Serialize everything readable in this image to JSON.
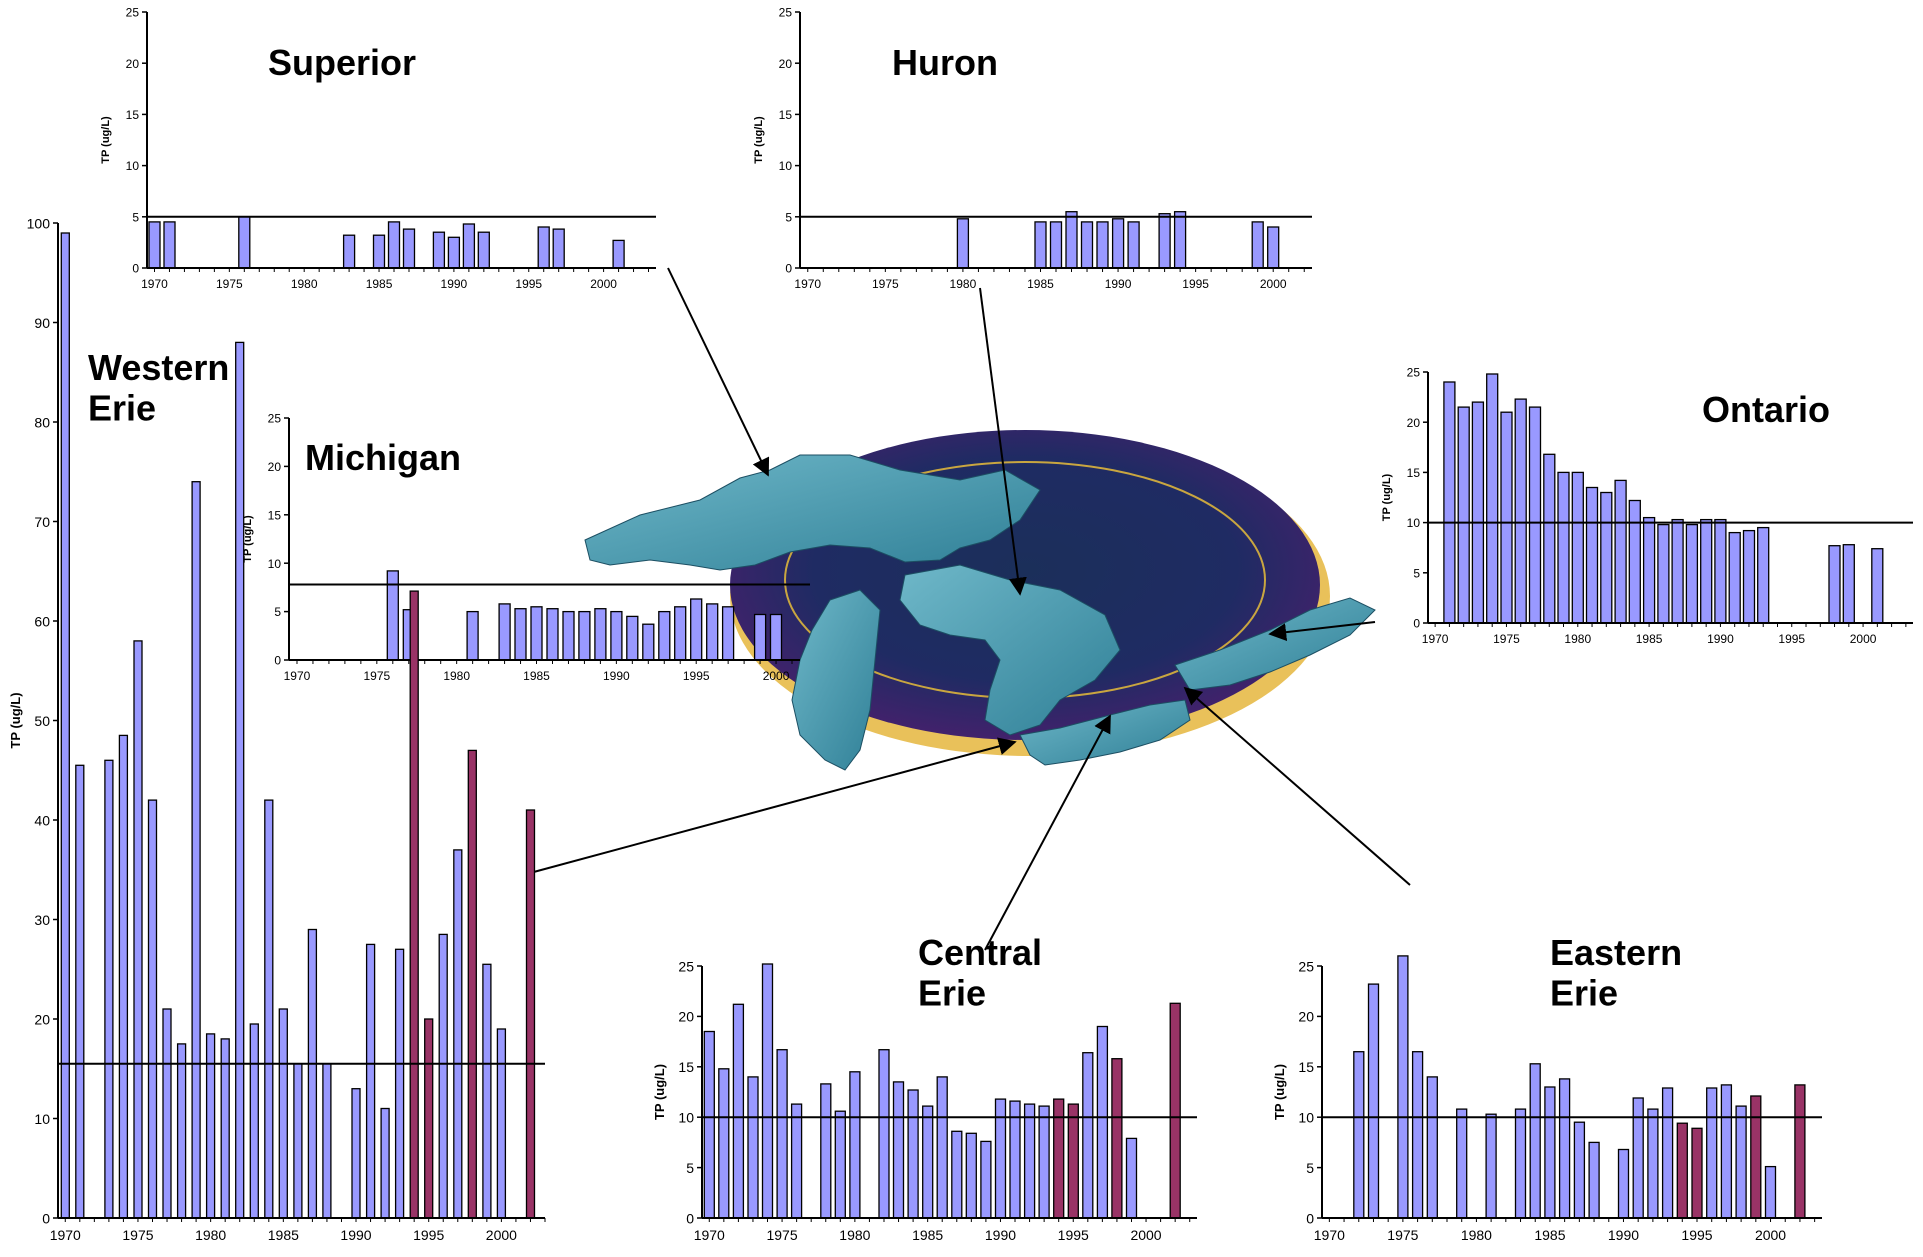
{
  "colors": {
    "bar": "#9999ff",
    "bar_highlight": "#993366",
    "bar_outline": "#000000",
    "axis": "#000000"
  },
  "map": {
    "description_icon": "great-lakes-basin-map"
  },
  "chart_data": [
    {
      "id": "superior",
      "type": "bar",
      "title": "Superior",
      "ylabel": "TP (ug/L)",
      "ylim": [
        0,
        25
      ],
      "yticks": [
        0,
        5,
        10,
        15,
        20,
        25
      ],
      "xticks": [
        1970,
        1975,
        1980,
        1985,
        1990,
        1995,
        2000
      ],
      "xlim": [
        1969.5,
        2003.5
      ],
      "reference_line": 5,
      "x": [
        1970,
        1971,
        1976,
        1983,
        1985,
        1986,
        1987,
        1989,
        1990,
        1991,
        1992,
        1996,
        1997,
        2001
      ],
      "values": [
        4.5,
        4.5,
        5,
        3.2,
        3.2,
        4.5,
        3.8,
        3.5,
        3,
        4.3,
        3.5,
        4,
        3.8,
        2.7
      ],
      "highlight_x": []
    },
    {
      "id": "huron",
      "type": "bar",
      "title": "Huron",
      "ylabel": "TP (ug/L)",
      "ylim": [
        0,
        25
      ],
      "yticks": [
        0,
        5,
        10,
        15,
        20,
        25
      ],
      "xticks": [
        1970,
        1975,
        1980,
        1985,
        1990,
        1995,
        2000
      ],
      "xlim": [
        1969.5,
        2002.5
      ],
      "reference_line": 5,
      "x": [
        1980,
        1985,
        1986,
        1987,
        1988,
        1989,
        1990,
        1991,
        1993,
        1994,
        1999,
        2000
      ],
      "values": [
        4.8,
        4.5,
        4.5,
        5.5,
        4.5,
        4.5,
        4.8,
        4.5,
        5.3,
        5.5,
        4.5,
        4
      ],
      "highlight_x": []
    },
    {
      "id": "michigan",
      "type": "bar",
      "title": "Michigan",
      "ylabel": "TP (ug/L)",
      "ylim": [
        0,
        25
      ],
      "yticks": [
        0,
        5,
        10,
        15,
        20,
        25
      ],
      "xticks": [
        1970,
        1975,
        1980,
        1985,
        1990,
        1995,
        2000
      ],
      "xlim": [
        1969.5,
        2001.5
      ],
      "reference_line": 7.8,
      "x": [
        1976,
        1977,
        1981,
        1983,
        1984,
        1985,
        1986,
        1987,
        1988,
        1989,
        1990,
        1991,
        1992,
        1993,
        1994,
        1995,
        1996,
        1997,
        1999,
        2000
      ],
      "values": [
        9.2,
        5.2,
        5,
        5.8,
        5.3,
        5.5,
        5.3,
        5,
        5,
        5.3,
        5,
        4.5,
        3.7,
        5,
        5.5,
        6.3,
        5.8,
        5.5,
        4.7,
        4.7
      ],
      "highlight_x": []
    },
    {
      "id": "ontario",
      "type": "bar",
      "title": "Ontario",
      "ylabel": "TP (ug/L)",
      "ylim": [
        0,
        25
      ],
      "yticks": [
        0,
        5,
        10,
        15,
        20,
        25
      ],
      "xticks": [
        1970,
        1975,
        1980,
        1985,
        1990,
        1995,
        2000
      ],
      "xlim": [
        1969.5,
        2003.5
      ],
      "reference_line": 10,
      "x": [
        1971,
        1972,
        1973,
        1974,
        1975,
        1976,
        1977,
        1978,
        1979,
        1980,
        1981,
        1982,
        1983,
        1984,
        1985,
        1986,
        1987,
        1988,
        1989,
        1990,
        1991,
        1992,
        1993,
        1998,
        1999,
        2001
      ],
      "values": [
        24,
        21.5,
        22,
        24.8,
        21,
        22.3,
        21.5,
        16.8,
        15,
        15,
        13.5,
        13,
        14.2,
        12.2,
        10.5,
        9.8,
        10.3,
        9.8,
        10.3,
        10.3,
        9,
        9.2,
        9.5,
        7.7,
        7.8,
        7.4
      ],
      "highlight_x": []
    },
    {
      "id": "western-erie",
      "type": "bar",
      "title": "Western\nErie",
      "ylabel": "TP (ug/L)",
      "ylim": [
        0,
        100
      ],
      "yticks": [
        0,
        10,
        20,
        30,
        40,
        50,
        60,
        70,
        80,
        90,
        100
      ],
      "xticks": [
        1970,
        1975,
        1980,
        1985,
        1990,
        1995,
        2000
      ],
      "xlim": [
        1969.5,
        2003
      ],
      "reference_line": 15.5,
      "x": [
        1970,
        1971,
        1973,
        1974,
        1975,
        1976,
        1977,
        1978,
        1979,
        1980,
        1981,
        1982,
        1983,
        1984,
        1985,
        1986,
        1987,
        1988,
        1990,
        1991,
        1992,
        1993,
        1994,
        1995,
        1996,
        1997,
        1998,
        1999,
        2000,
        2002
      ],
      "values": [
        99,
        45.5,
        46,
        48.5,
        58,
        42,
        21,
        17.5,
        74,
        18.5,
        18,
        88,
        19.5,
        42,
        21,
        15.5,
        29,
        15.5,
        13,
        27.5,
        11,
        27,
        63,
        20,
        28.5,
        37,
        47,
        25.5,
        19,
        41
      ],
      "highlight_x": [
        1994,
        1995,
        1998,
        2002
      ]
    },
    {
      "id": "central-erie",
      "type": "bar",
      "title": "Central\nErie",
      "ylabel": "TP (ug/L)",
      "ylim": [
        0,
        25
      ],
      "yticks": [
        0,
        5,
        10,
        15,
        20,
        25
      ],
      "xticks": [
        1970,
        1975,
        1980,
        1985,
        1990,
        1995,
        2000
      ],
      "xlim": [
        1969.5,
        2003.5
      ],
      "reference_line": 10,
      "x": [
        1970,
        1971,
        1972,
        1973,
        1974,
        1975,
        1976,
        1978,
        1979,
        1980,
        1982,
        1983,
        1984,
        1985,
        1986,
        1987,
        1988,
        1989,
        1990,
        1991,
        1992,
        1993,
        1994,
        1995,
        1996,
        1997,
        1998,
        1999,
        2000,
        2002
      ],
      "values": [
        18.5,
        14.8,
        21.2,
        14,
        25.2,
        16.7,
        11.3,
        13.3,
        10.6,
        14.5,
        16.7,
        13.5,
        12.7,
        11.1,
        14,
        8.6,
        8.4,
        7.6,
        11.8,
        11.6,
        11.3,
        11.1,
        11.8,
        11.3,
        16.4,
        19,
        15.8,
        7.9,
        0,
        21.3
      ],
      "highlight_x": [
        1994,
        1995,
        1998,
        2002
      ]
    },
    {
      "id": "eastern-erie",
      "type": "bar",
      "title": "Eastern\nErie",
      "ylabel": "TP (ug/L)",
      "ylim": [
        0,
        25
      ],
      "yticks": [
        0,
        5,
        10,
        15,
        20,
        25
      ],
      "xticks": [
        1970,
        1975,
        1980,
        1985,
        1990,
        1995,
        2000
      ],
      "xlim": [
        1969.5,
        2003.5
      ],
      "reference_line": 10,
      "x": [
        1972,
        1973,
        1975,
        1976,
        1977,
        1979,
        1981,
        1983,
        1984,
        1985,
        1986,
        1987,
        1988,
        1990,
        1991,
        1992,
        1993,
        1994,
        1995,
        1996,
        1997,
        1998,
        1999,
        2000,
        2002
      ],
      "values": [
        16.5,
        23.2,
        26,
        16.5,
        14,
        10.8,
        10.3,
        10.8,
        15.3,
        13,
        13.8,
        9.5,
        7.5,
        6.8,
        11.9,
        10.8,
        12.9,
        9.4,
        8.9,
        12.9,
        13.2,
        11.1,
        12.1,
        5.1,
        13.2
      ],
      "highlight_x": [
        1994,
        1995,
        1999,
        2002
      ]
    }
  ]
}
